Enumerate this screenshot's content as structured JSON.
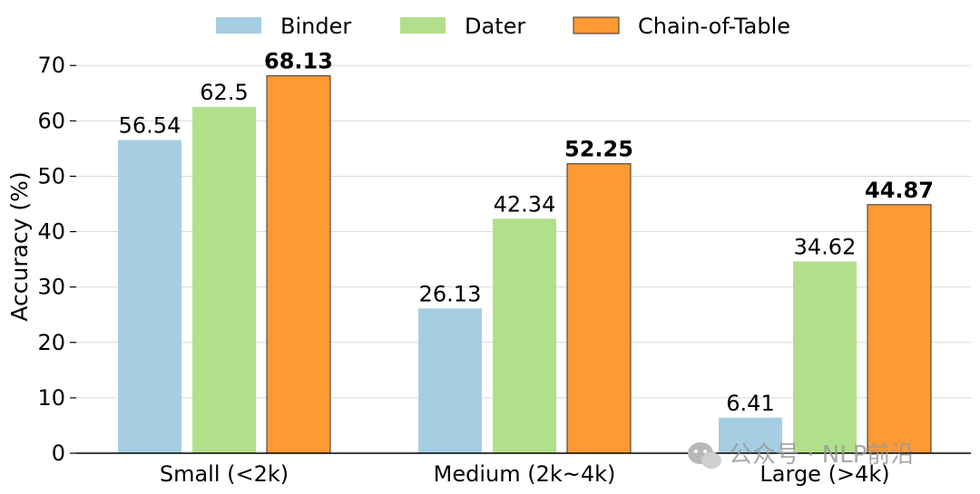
{
  "chart_data": {
    "type": "bar",
    "categories": [
      "Small (<2k)",
      "Medium (2k~4k)",
      "Large (>4k)"
    ],
    "series": [
      {
        "name": "Binder",
        "color": "#a6cee3",
        "values": [
          56.54,
          26.13,
          6.41
        ]
      },
      {
        "name": "Dater",
        "color": "#b2df8a",
        "values": [
          62.5,
          42.34,
          34.62
        ]
      },
      {
        "name": "Chain-of-Table",
        "color": "#ff9933",
        "values": [
          68.13,
          52.25,
          44.87
        ]
      }
    ],
    "value_labels": [
      [
        "56.54",
        "26.13",
        "6.41"
      ],
      [
        "62.5",
        "42.34",
        "34.62"
      ],
      [
        "68.13",
        "52.25",
        "44.87"
      ]
    ],
    "bold_series": "Chain-of-Table",
    "ylabel": "Accuracy (%)",
    "ylim": [
      0,
      72
    ],
    "yticks": [
      0,
      10,
      20,
      30,
      40,
      50,
      60,
      70
    ],
    "grid": "horizontal",
    "legend": "top-center"
  },
  "watermark": {
    "text": "公众号 · NLP前沿",
    "icon": "wechat-icon"
  }
}
